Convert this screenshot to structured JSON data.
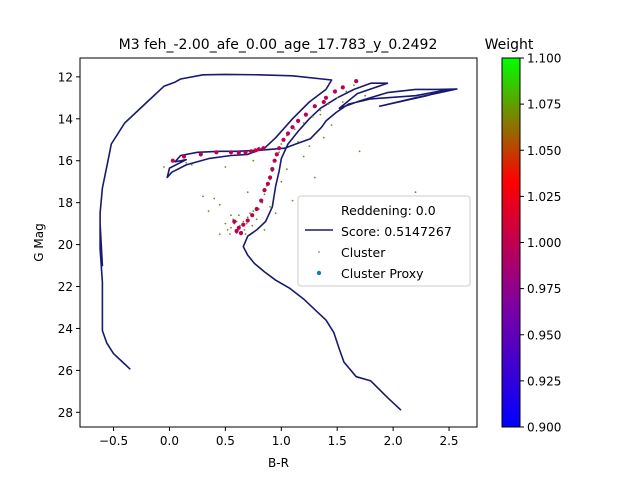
{
  "chart_data": {
    "type": "scatter",
    "title": "M3 feh_-2.00_afe_0.00_age_17.783_y_0.2492",
    "xlabel": "B-R",
    "ylabel": "G Mag",
    "xlim": [
      -0.8,
      2.75
    ],
    "ylim": [
      28.7,
      11.1
    ],
    "y_inverted": true,
    "x_ticks": [
      -0.5,
      0.0,
      0.5,
      1.0,
      1.5,
      2.0,
      2.5
    ],
    "x_tick_labels": [
      "−0.5",
      "0.0",
      "0.5",
      "1.0",
      "1.5",
      "2.0",
      "2.5"
    ],
    "y_ticks": [
      12,
      14,
      16,
      18,
      20,
      22,
      24,
      26,
      28
    ],
    "y_tick_labels": [
      "12",
      "14",
      "16",
      "18",
      "20",
      "22",
      "24",
      "26",
      "28"
    ],
    "grid": false,
    "legend": {
      "position": "center-right",
      "entries": [
        "Reddening: 0.0",
        "Score: 0.5147267",
        "Cluster",
        "Cluster Proxy"
      ]
    },
    "colorbar": {
      "label": "Weight",
      "range": [
        0.9,
        1.1
      ],
      "tick_values": [
        0.9,
        0.925,
        0.95,
        0.975,
        1.0,
        1.025,
        1.05,
        1.075,
        1.1
      ],
      "tick_labels": [
        "0.900",
        "0.925",
        "0.950",
        "0.975",
        "1.000",
        "1.025",
        "1.050",
        "1.075",
        "1.100"
      ],
      "colors": [
        "#0000ff",
        "#8000a0",
        "#ff0000",
        "#00ff00"
      ]
    },
    "series": [
      {
        "name": "Score: 0.5147267",
        "kind": "line",
        "color": "#191970",
        "points": [
          [
            2.07,
            27.9
          ],
          [
            1.95,
            27.3
          ],
          [
            1.8,
            26.5
          ],
          [
            1.67,
            26.3
          ],
          [
            1.56,
            25.6
          ],
          [
            1.52,
            25.0
          ],
          [
            1.47,
            24.2
          ],
          [
            1.4,
            23.6
          ],
          [
            1.3,
            23.1
          ],
          [
            1.2,
            22.6
          ],
          [
            1.08,
            22.1
          ],
          [
            0.95,
            21.7
          ],
          [
            0.85,
            21.3
          ],
          [
            0.76,
            20.9
          ],
          [
            0.7,
            20.5
          ],
          [
            0.66,
            20.1
          ],
          [
            0.7,
            19.6
          ],
          [
            0.78,
            19.3
          ],
          [
            0.86,
            18.9
          ],
          [
            0.92,
            18.2
          ],
          [
            0.95,
            17.2
          ],
          [
            0.98,
            16.5
          ],
          [
            1.0,
            15.9
          ],
          [
            1.06,
            15.2
          ],
          [
            1.15,
            14.6
          ],
          [
            1.25,
            14.0
          ],
          [
            1.35,
            13.5
          ],
          [
            1.5,
            13.0
          ],
          [
            1.65,
            12.6
          ],
          [
            1.8,
            12.3
          ],
          [
            1.95,
            12.3
          ],
          [
            1.68,
            12.8
          ],
          [
            1.52,
            13.5
          ],
          [
            1.7,
            13.15
          ],
          [
            1.95,
            12.75
          ],
          [
            2.2,
            12.6
          ],
          [
            2.4,
            12.6
          ],
          [
            2.57,
            12.58
          ],
          [
            2.2,
            13.0
          ],
          [
            1.88,
            13.4
          ],
          [
            2.3,
            12.9
          ],
          [
            2.5,
            12.6
          ],
          [
            2.2,
            12.9
          ],
          [
            1.8,
            13.05
          ],
          [
            1.6,
            13.3
          ],
          [
            1.49,
            13.7
          ],
          [
            1.4,
            14.1
          ],
          [
            1.36,
            14.4
          ],
          [
            1.26,
            14.95
          ],
          [
            1.13,
            15.2
          ],
          [
            1.03,
            15.4
          ],
          [
            0.8,
            15.5
          ],
          [
            0.6,
            15.55
          ],
          [
            0.45,
            15.55
          ],
          [
            0.25,
            15.6
          ],
          [
            0.1,
            15.75
          ],
          [
            0.05,
            16.05
          ],
          [
            0.15,
            15.95
          ],
          [
            0.0,
            16.35
          ],
          [
            -0.02,
            16.8
          ],
          [
            0.02,
            16.55
          ],
          [
            0.15,
            16.2
          ],
          [
            0.35,
            15.9
          ],
          [
            0.55,
            15.75
          ],
          [
            0.7,
            15.7
          ],
          [
            0.85,
            15.4
          ],
          [
            0.95,
            14.9
          ],
          [
            1.1,
            14.0
          ],
          [
            1.25,
            13.2
          ],
          [
            1.4,
            12.6
          ],
          [
            1.45,
            12.15
          ],
          [
            1.1,
            11.95
          ],
          [
            0.8,
            11.9
          ],
          [
            0.5,
            11.88
          ],
          [
            0.3,
            11.9
          ],
          [
            0.1,
            12.1
          ],
          [
            0.05,
            12.25
          ],
          [
            -0.05,
            12.45
          ],
          [
            -0.2,
            13.2
          ],
          [
            -0.4,
            14.2
          ],
          [
            -0.52,
            15.2
          ],
          [
            -0.55,
            16.0
          ],
          [
            -0.6,
            17.3
          ],
          [
            -0.62,
            18.5
          ],
          [
            -0.62,
            19.5
          ],
          [
            -0.6,
            21.0
          ],
          [
            -0.62,
            19.0
          ],
          [
            -0.62,
            20.2
          ],
          [
            -0.6,
            21.8
          ],
          [
            -0.6,
            24.1
          ],
          [
            -0.56,
            24.7
          ],
          [
            -0.5,
            25.2
          ],
          [
            -0.42,
            25.6
          ],
          [
            -0.35,
            25.95
          ]
        ]
      },
      {
        "name": "Cluster",
        "kind": "scatter",
        "color": "#6b8e23",
        "points": [
          [
            0.6,
            18.9
          ],
          [
            0.63,
            19.1
          ],
          [
            0.67,
            19.3
          ],
          [
            0.58,
            19.0
          ],
          [
            0.7,
            18.7
          ],
          [
            0.55,
            19.2
          ],
          [
            0.62,
            18.6
          ],
          [
            0.68,
            19.5
          ],
          [
            0.52,
            19.3
          ],
          [
            0.74,
            19.1
          ],
          [
            0.57,
            18.8
          ],
          [
            0.65,
            19.4
          ],
          [
            0.72,
            18.5
          ],
          [
            0.6,
            19.45
          ],
          [
            0.5,
            19.0
          ],
          [
            0.78,
            18.8
          ],
          [
            0.66,
            18.9
          ],
          [
            0.54,
            19.5
          ],
          [
            0.61,
            19.2
          ],
          [
            0.69,
            19.0
          ],
          [
            0.75,
            18.4
          ],
          [
            0.8,
            18.3
          ],
          [
            0.83,
            18.0
          ],
          [
            0.85,
            17.6
          ],
          [
            0.87,
            17.2
          ],
          [
            0.9,
            16.9
          ],
          [
            0.92,
            16.5
          ],
          [
            0.95,
            16.0
          ],
          [
            0.98,
            15.6
          ],
          [
            1.0,
            15.2
          ],
          [
            1.05,
            14.8
          ],
          [
            1.12,
            14.5
          ],
          [
            1.2,
            14.2
          ],
          [
            1.28,
            13.9
          ],
          [
            1.35,
            13.6
          ],
          [
            1.42,
            13.3
          ],
          [
            1.5,
            13.0
          ],
          [
            1.58,
            12.7
          ],
          [
            1.65,
            12.4
          ],
          [
            0.4,
            17.8
          ],
          [
            0.45,
            18.1
          ],
          [
            0.35,
            18.4
          ],
          [
            0.3,
            17.7
          ],
          [
            0.95,
            18.5
          ],
          [
            1.1,
            17.9
          ],
          [
            1.3,
            16.8
          ],
          [
            0.15,
            16.1
          ],
          [
            -0.05,
            16.3
          ],
          [
            0.2,
            16.2
          ],
          [
            0.5,
            16.3
          ],
          [
            0.75,
            16.0
          ],
          [
            1.2,
            15.8
          ],
          [
            1.38,
            14.9
          ],
          [
            1.7,
            15.55
          ],
          [
            2.2,
            17.5
          ],
          [
            1.45,
            14.3
          ],
          [
            1.25,
            15.3
          ],
          [
            0.55,
            18.6
          ],
          [
            0.45,
            19.5
          ],
          [
            0.85,
            19.3
          ],
          [
            0.9,
            18.2
          ],
          [
            1.0,
            17.0
          ],
          [
            0.7,
            17.5
          ],
          [
            1.05,
            16.4
          ],
          [
            1.15,
            15.1
          ],
          [
            1.35,
            13.8
          ],
          [
            1.55,
            13.2
          ],
          [
            1.75,
            12.9
          ]
        ]
      },
      {
        "name": "Cluster Proxy",
        "kind": "scatter",
        "color_by": "weight",
        "points": [
          [
            0.03,
            16.0,
            1.0
          ],
          [
            0.13,
            15.8,
            1.0
          ],
          [
            0.28,
            15.7,
            1.0
          ],
          [
            0.42,
            15.6,
            1.0
          ],
          [
            0.55,
            15.6,
            1.0
          ],
          [
            0.62,
            15.62,
            1.0
          ],
          [
            0.68,
            15.6,
            1.0
          ],
          [
            0.73,
            15.55,
            1.0
          ],
          [
            0.77,
            15.5,
            1.0
          ],
          [
            0.8,
            15.45,
            1.0
          ],
          [
            0.84,
            15.4,
            1.0
          ],
          [
            0.9,
            16.8,
            1.0
          ],
          [
            0.92,
            16.4,
            1.0
          ],
          [
            0.94,
            16.0,
            1.0
          ],
          [
            0.96,
            15.7,
            1.0
          ],
          [
            0.98,
            15.4,
            1.0
          ],
          [
            1.02,
            15.0,
            1.0
          ],
          [
            1.06,
            14.7,
            1.0
          ],
          [
            1.1,
            14.4,
            1.0
          ],
          [
            1.15,
            14.1,
            1.0
          ],
          [
            1.22,
            13.8,
            1.0
          ],
          [
            1.3,
            13.4,
            1.0
          ],
          [
            1.4,
            13.0,
            1.0
          ],
          [
            1.55,
            12.5,
            1.0
          ],
          [
            1.67,
            12.2,
            1.0
          ],
          [
            0.85,
            17.4,
            1.0
          ],
          [
            0.88,
            17.1,
            1.0
          ],
          [
            0.82,
            17.9,
            1.0
          ],
          [
            0.78,
            18.3,
            1.0
          ],
          [
            0.74,
            18.6,
            1.0
          ],
          [
            0.7,
            18.85,
            1.0
          ],
          [
            0.66,
            19.05,
            1.0
          ],
          [
            0.62,
            19.2,
            1.0
          ],
          [
            0.64,
            19.45,
            1.0
          ],
          [
            0.58,
            18.9,
            1.0
          ],
          [
            0.6,
            19.35,
            1.0
          ],
          [
            1.48,
            12.7,
            1.0
          ],
          [
            1.38,
            13.2,
            1.0
          ]
        ]
      }
    ]
  }
}
